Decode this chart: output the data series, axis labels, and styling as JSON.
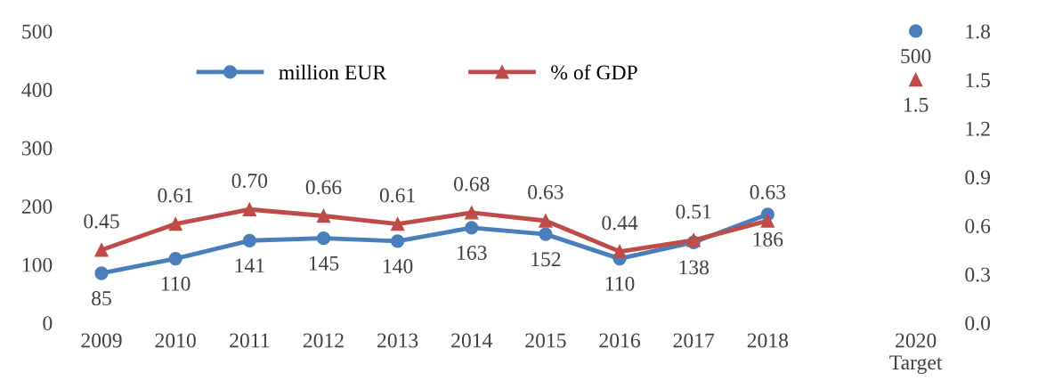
{
  "chart_data": {
    "type": "line",
    "categories": [
      "2009",
      "2010",
      "2011",
      "2012",
      "2013",
      "2014",
      "2015",
      "2016",
      "2017",
      "2018",
      null,
      "2020\nTarget"
    ],
    "series": [
      {
        "name": "million EUR",
        "color": "#4a7ebb",
        "marker": "circle",
        "values": [
          85,
          110,
          141,
          145,
          140,
          163,
          152,
          110,
          138,
          186,
          null,
          500
        ],
        "value_labels": [
          "85",
          "110",
          "141",
          "145",
          "140",
          "163",
          "152",
          "110",
          "138",
          "186",
          null,
          "500"
        ]
      },
      {
        "name": "% of GDP",
        "color": "#be4b48",
        "marker": "triangle",
        "axis": "y2",
        "values": [
          0.45,
          0.61,
          0.7,
          0.66,
          0.61,
          0.68,
          0.63,
          0.44,
          0.51,
          0.63,
          null,
          1.5
        ],
        "value_labels": [
          "0.45",
          "0.61",
          "0.70",
          "0.66",
          "0.61",
          "0.68",
          "0.63",
          "0.44",
          "0.51",
          "0.63",
          null,
          "1.5"
        ]
      }
    ],
    "ylim": [
      0,
      500
    ],
    "yticks": [
      0,
      100,
      200,
      300,
      400,
      500
    ],
    "y2lim": [
      0,
      1.8
    ],
    "y2ticks": [
      {
        "value": 0,
        "label": "0.0"
      },
      0.3,
      0.6,
      0.9,
      1.2,
      1.5,
      1.8
    ],
    "grid": false,
    "legend": "top",
    "line_style": "solid"
  }
}
